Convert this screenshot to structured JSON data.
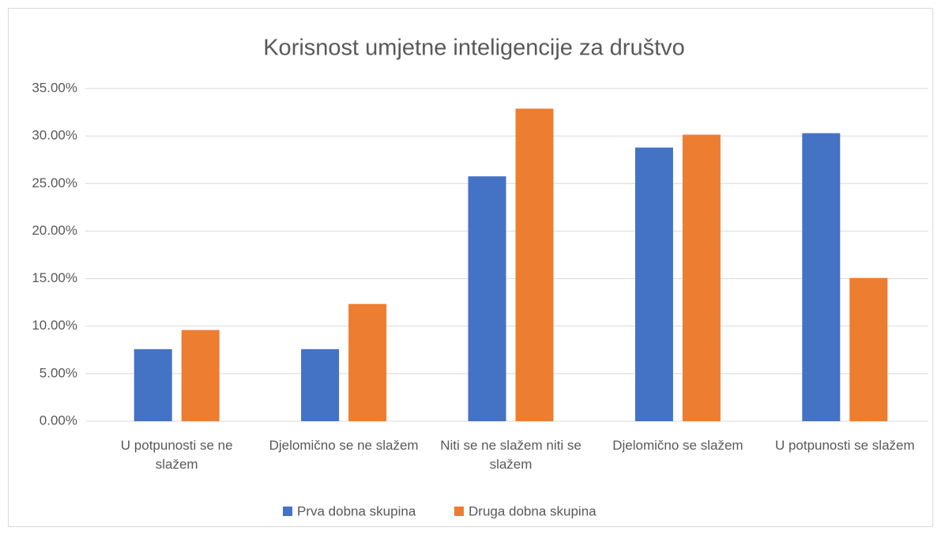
{
  "chart_data": {
    "type": "bar",
    "title": "Korisnost umjetne inteligencije za društvo",
    "categories": [
      "U potpunosti se ne slažem",
      "Djelomično se ne slažem",
      "Niti se ne slažem niti se slažem",
      "Djelomično se slažem",
      "U potpunosti se slažem"
    ],
    "series": [
      {
        "name": "Prva dobna skupina",
        "color": "#4472c4",
        "values": [
          7.58,
          7.58,
          25.76,
          28.79,
          30.3
        ]
      },
      {
        "name": "Druga dobna skupina",
        "color": "#ed7d31",
        "values": [
          9.59,
          12.33,
          32.88,
          30.14,
          15.07
        ]
      }
    ],
    "ylim": [
      0,
      35
    ],
    "yticks": [
      {
        "value": 0,
        "label": "0.00%"
      },
      {
        "value": 5,
        "label": "5.00%"
      },
      {
        "value": 10,
        "label": "10.00%"
      },
      {
        "value": 15,
        "label": "15.00%"
      },
      {
        "value": 20,
        "label": "20.00%"
      },
      {
        "value": 25,
        "label": "25.00%"
      },
      {
        "value": 30,
        "label": "30.00%"
      },
      {
        "value": 35,
        "label": "35.00%"
      }
    ],
    "grid": true,
    "legend": "bottom"
  }
}
